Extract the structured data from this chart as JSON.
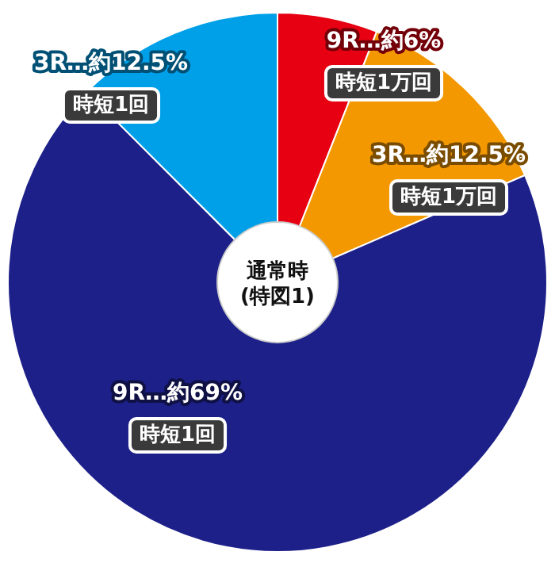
{
  "chart_data": {
    "type": "donut",
    "annotations": [
      "通常時\n(特図1)"
    ],
    "categories": [
      "時短1万回",
      "時短1万回",
      "時短1回",
      "時短1回"
    ],
    "values": [
      6,
      12.5,
      69,
      12.5
    ],
    "value_labels": [
      "9R…約6%",
      "3R…約12.5%",
      "9R…約69%",
      "3R…約12.5%"
    ],
    "colors": [
      "#e60012",
      "#f39800",
      "#1d2088",
      "#00a0e9"
    ]
  }
}
